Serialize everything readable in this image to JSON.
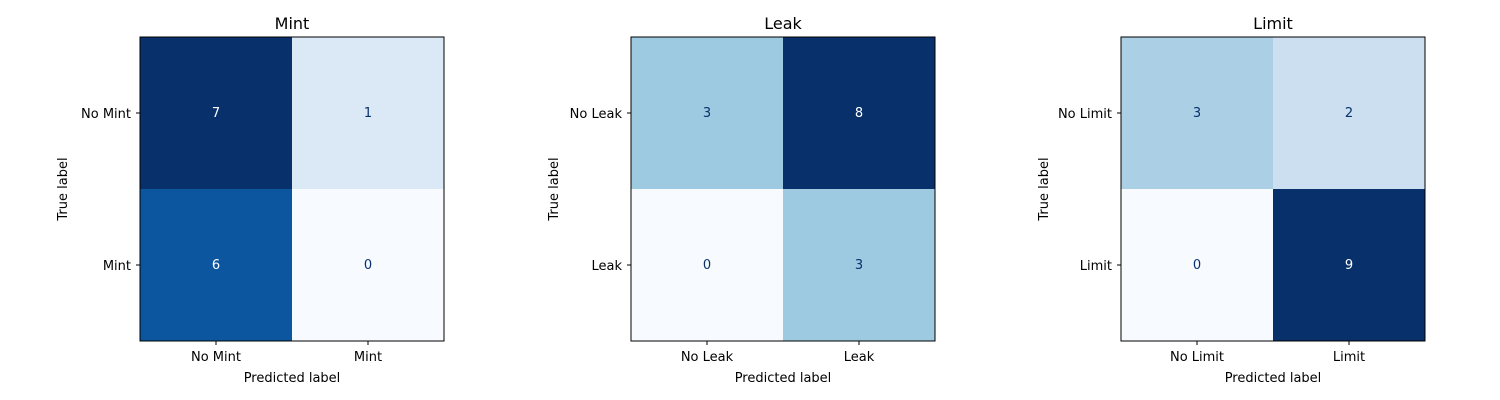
{
  "chart_data": [
    {
      "type": "heatmap",
      "title": "Mint",
      "xlabel": "Predicted label",
      "ylabel": "True label",
      "x_categories": [
        "No Mint",
        "Mint"
      ],
      "y_categories": [
        "No Mint",
        "Mint"
      ],
      "values": [
        [
          7,
          1
        ],
        [
          6,
          0
        ]
      ],
      "colormap": "Blues"
    },
    {
      "type": "heatmap",
      "title": "Leak",
      "xlabel": "Predicted label",
      "ylabel": "True label",
      "x_categories": [
        "No Leak",
        "Leak"
      ],
      "y_categories": [
        "No Leak",
        "Leak"
      ],
      "values": [
        [
          3,
          8
        ],
        [
          0,
          3
        ]
      ],
      "colormap": "Blues"
    },
    {
      "type": "heatmap",
      "title": "Limit",
      "xlabel": "Predicted label",
      "ylabel": "True label",
      "x_categories": [
        "No Limit",
        "Limit"
      ],
      "y_categories": [
        "No Limit",
        "Limit"
      ],
      "values": [
        [
          3,
          2
        ],
        [
          0,
          9
        ]
      ],
      "colormap": "Blues"
    }
  ]
}
